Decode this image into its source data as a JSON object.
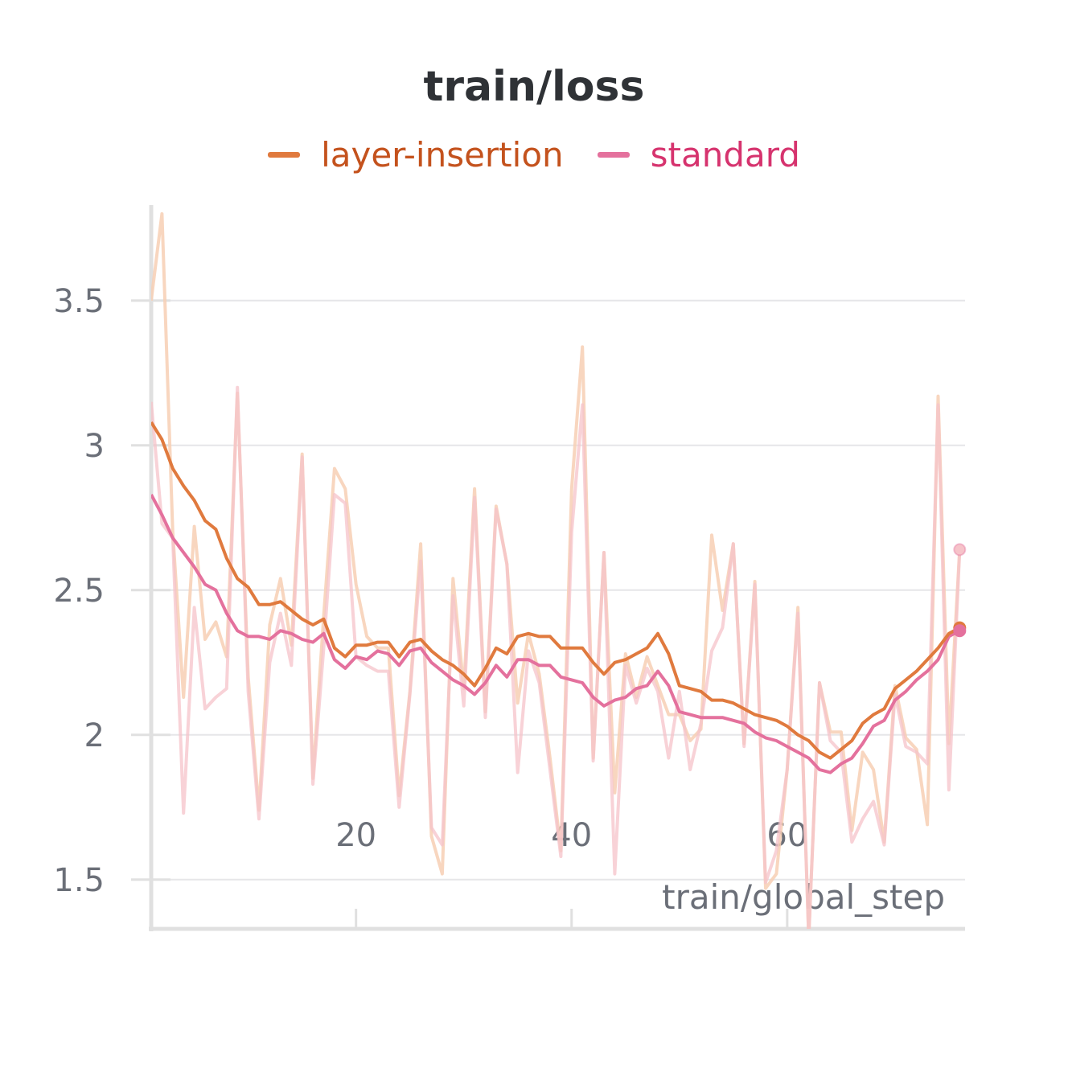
{
  "colors": {
    "layer_insertion": "#e07a3e",
    "layer_insertion_legend_text": "#c4521d",
    "layer_insertion_raw": "#f7cfb4",
    "standard": "#e4719d",
    "standard_legend_text": "#d6336e",
    "standard_raw": "#f6c3c9",
    "grid": "#e6e6e8",
    "axis": "#e0e0e0"
  },
  "chart_data": {
    "type": "line",
    "title": "train/loss",
    "xlabel": "train/global_step",
    "ylabel": "",
    "xlim": [
      1,
      76.5
    ],
    "ylim": [
      1.33,
      3.83
    ],
    "x_ticks": [
      20,
      40,
      60
    ],
    "y_ticks": [
      1.5,
      2,
      2.5,
      3,
      3.5
    ],
    "x_tick_labels": [
      "20",
      "40",
      "60"
    ],
    "y_tick_labels": [
      "1.5",
      "2",
      "2.5",
      "3",
      "3.5"
    ],
    "grid": true,
    "legend_position": "top-center",
    "series": [
      {
        "name": "layer-insertion",
        "x": [
          1,
          2,
          3,
          4,
          5,
          6,
          7,
          8,
          9,
          10,
          11,
          12,
          13,
          14,
          15,
          16,
          17,
          18,
          19,
          20,
          21,
          22,
          23,
          24,
          25,
          26,
          27,
          28,
          29,
          30,
          31,
          32,
          33,
          34,
          35,
          36,
          37,
          38,
          39,
          40,
          41,
          42,
          43,
          44,
          45,
          46,
          47,
          48,
          49,
          50,
          51,
          52,
          53,
          54,
          55,
          56,
          57,
          58,
          59,
          60,
          61,
          62,
          63,
          64,
          65,
          66,
          67,
          68,
          69,
          70,
          71,
          72,
          73,
          74,
          75,
          76
        ],
        "smoothed": [
          3.08,
          3.02,
          2.92,
          2.86,
          2.81,
          2.74,
          2.71,
          2.61,
          2.54,
          2.51,
          2.45,
          2.45,
          2.46,
          2.43,
          2.4,
          2.38,
          2.4,
          2.3,
          2.27,
          2.31,
          2.31,
          2.32,
          2.32,
          2.27,
          2.32,
          2.33,
          2.29,
          2.26,
          2.24,
          2.21,
          2.17,
          2.23,
          2.3,
          2.28,
          2.34,
          2.35,
          2.34,
          2.34,
          2.3,
          2.3,
          2.3,
          2.25,
          2.21,
          2.25,
          2.26,
          2.28,
          2.3,
          2.35,
          2.28,
          2.17,
          2.16,
          2.15,
          2.12,
          2.12,
          2.11,
          2.09,
          2.07,
          2.06,
          2.05,
          2.03,
          2.0,
          1.98,
          1.94,
          1.92,
          1.95,
          1.98,
          2.04,
          2.07,
          2.09,
          2.16,
          2.19,
          2.22,
          2.26,
          2.3,
          2.35,
          2.37
        ],
        "raw": [
          3.5,
          3.8,
          2.7,
          2.13,
          2.72,
          2.33,
          2.39,
          2.27,
          3.18,
          2.2,
          1.74,
          2.38,
          2.54,
          2.31,
          2.97,
          1.85,
          2.41,
          2.92,
          2.85,
          2.52,
          2.34,
          2.3,
          2.3,
          1.79,
          2.15,
          2.66,
          1.65,
          1.52,
          2.54,
          2.16,
          2.85,
          2.08,
          2.79,
          2.59,
          2.11,
          2.35,
          2.21,
          1.92,
          1.6,
          2.85,
          3.34,
          1.92,
          2.63,
          1.8,
          2.28,
          2.13,
          2.27,
          2.17,
          2.07,
          2.07,
          1.98,
          2.02,
          2.69,
          2.43,
          2.66,
          1.97,
          2.53,
          1.47,
          1.52,
          1.88,
          2.44,
          1.3,
          2.18,
          2.01,
          2.01,
          1.67,
          1.94,
          1.88,
          1.63,
          2.17,
          1.99,
          1.95,
          1.69,
          3.17,
          1.97,
          2.64
        ]
      },
      {
        "name": "standard",
        "x": [
          1,
          2,
          3,
          4,
          5,
          6,
          7,
          8,
          9,
          10,
          11,
          12,
          13,
          14,
          15,
          16,
          17,
          18,
          19,
          20,
          21,
          22,
          23,
          24,
          25,
          26,
          27,
          28,
          29,
          30,
          31,
          32,
          33,
          34,
          35,
          36,
          37,
          38,
          39,
          40,
          41,
          42,
          43,
          44,
          45,
          46,
          47,
          48,
          49,
          50,
          51,
          52,
          53,
          54,
          55,
          56,
          57,
          58,
          59,
          60,
          61,
          62,
          63,
          64,
          65,
          66,
          67,
          68,
          69,
          70,
          71,
          72,
          73,
          74,
          75,
          76
        ],
        "smoothed": [
          2.83,
          2.76,
          2.68,
          2.63,
          2.58,
          2.52,
          2.5,
          2.42,
          2.36,
          2.34,
          2.34,
          2.33,
          2.36,
          2.35,
          2.33,
          2.32,
          2.35,
          2.26,
          2.23,
          2.27,
          2.26,
          2.29,
          2.28,
          2.24,
          2.29,
          2.3,
          2.25,
          2.22,
          2.19,
          2.17,
          2.14,
          2.18,
          2.24,
          2.2,
          2.26,
          2.26,
          2.24,
          2.24,
          2.2,
          2.19,
          2.18,
          2.13,
          2.1,
          2.12,
          2.13,
          2.16,
          2.17,
          2.22,
          2.17,
          2.08,
          2.07,
          2.06,
          2.06,
          2.06,
          2.05,
          2.04,
          2.01,
          1.99,
          1.98,
          1.96,
          1.94,
          1.92,
          1.88,
          1.87,
          1.9,
          1.92,
          1.97,
          2.03,
          2.05,
          2.12,
          2.15,
          2.19,
          2.22,
          2.26,
          2.34,
          2.36
        ],
        "raw": [
          3.15,
          2.73,
          2.68,
          1.73,
          2.44,
          2.09,
          2.13,
          2.16,
          3.2,
          2.15,
          1.71,
          2.25,
          2.42,
          2.24,
          2.96,
          1.83,
          2.3,
          2.83,
          2.8,
          2.27,
          2.24,
          2.22,
          2.22,
          1.75,
          2.14,
          2.6,
          1.68,
          1.62,
          2.48,
          2.1,
          2.82,
          2.06,
          2.78,
          2.59,
          1.87,
          2.29,
          2.18,
          1.88,
          1.58,
          2.7,
          3.14,
          1.91,
          2.63,
          1.52,
          2.24,
          2.11,
          2.23,
          2.15,
          1.92,
          2.15,
          1.88,
          2.04,
          2.29,
          2.37,
          2.66,
          1.96,
          2.52,
          1.49,
          1.6,
          1.88,
          2.42,
          1.3,
          2.18,
          1.98,
          1.94,
          1.63,
          1.71,
          1.77,
          1.62,
          2.14,
          1.96,
          1.94,
          1.9,
          3.14,
          1.81,
          2.64
        ]
      }
    ]
  }
}
